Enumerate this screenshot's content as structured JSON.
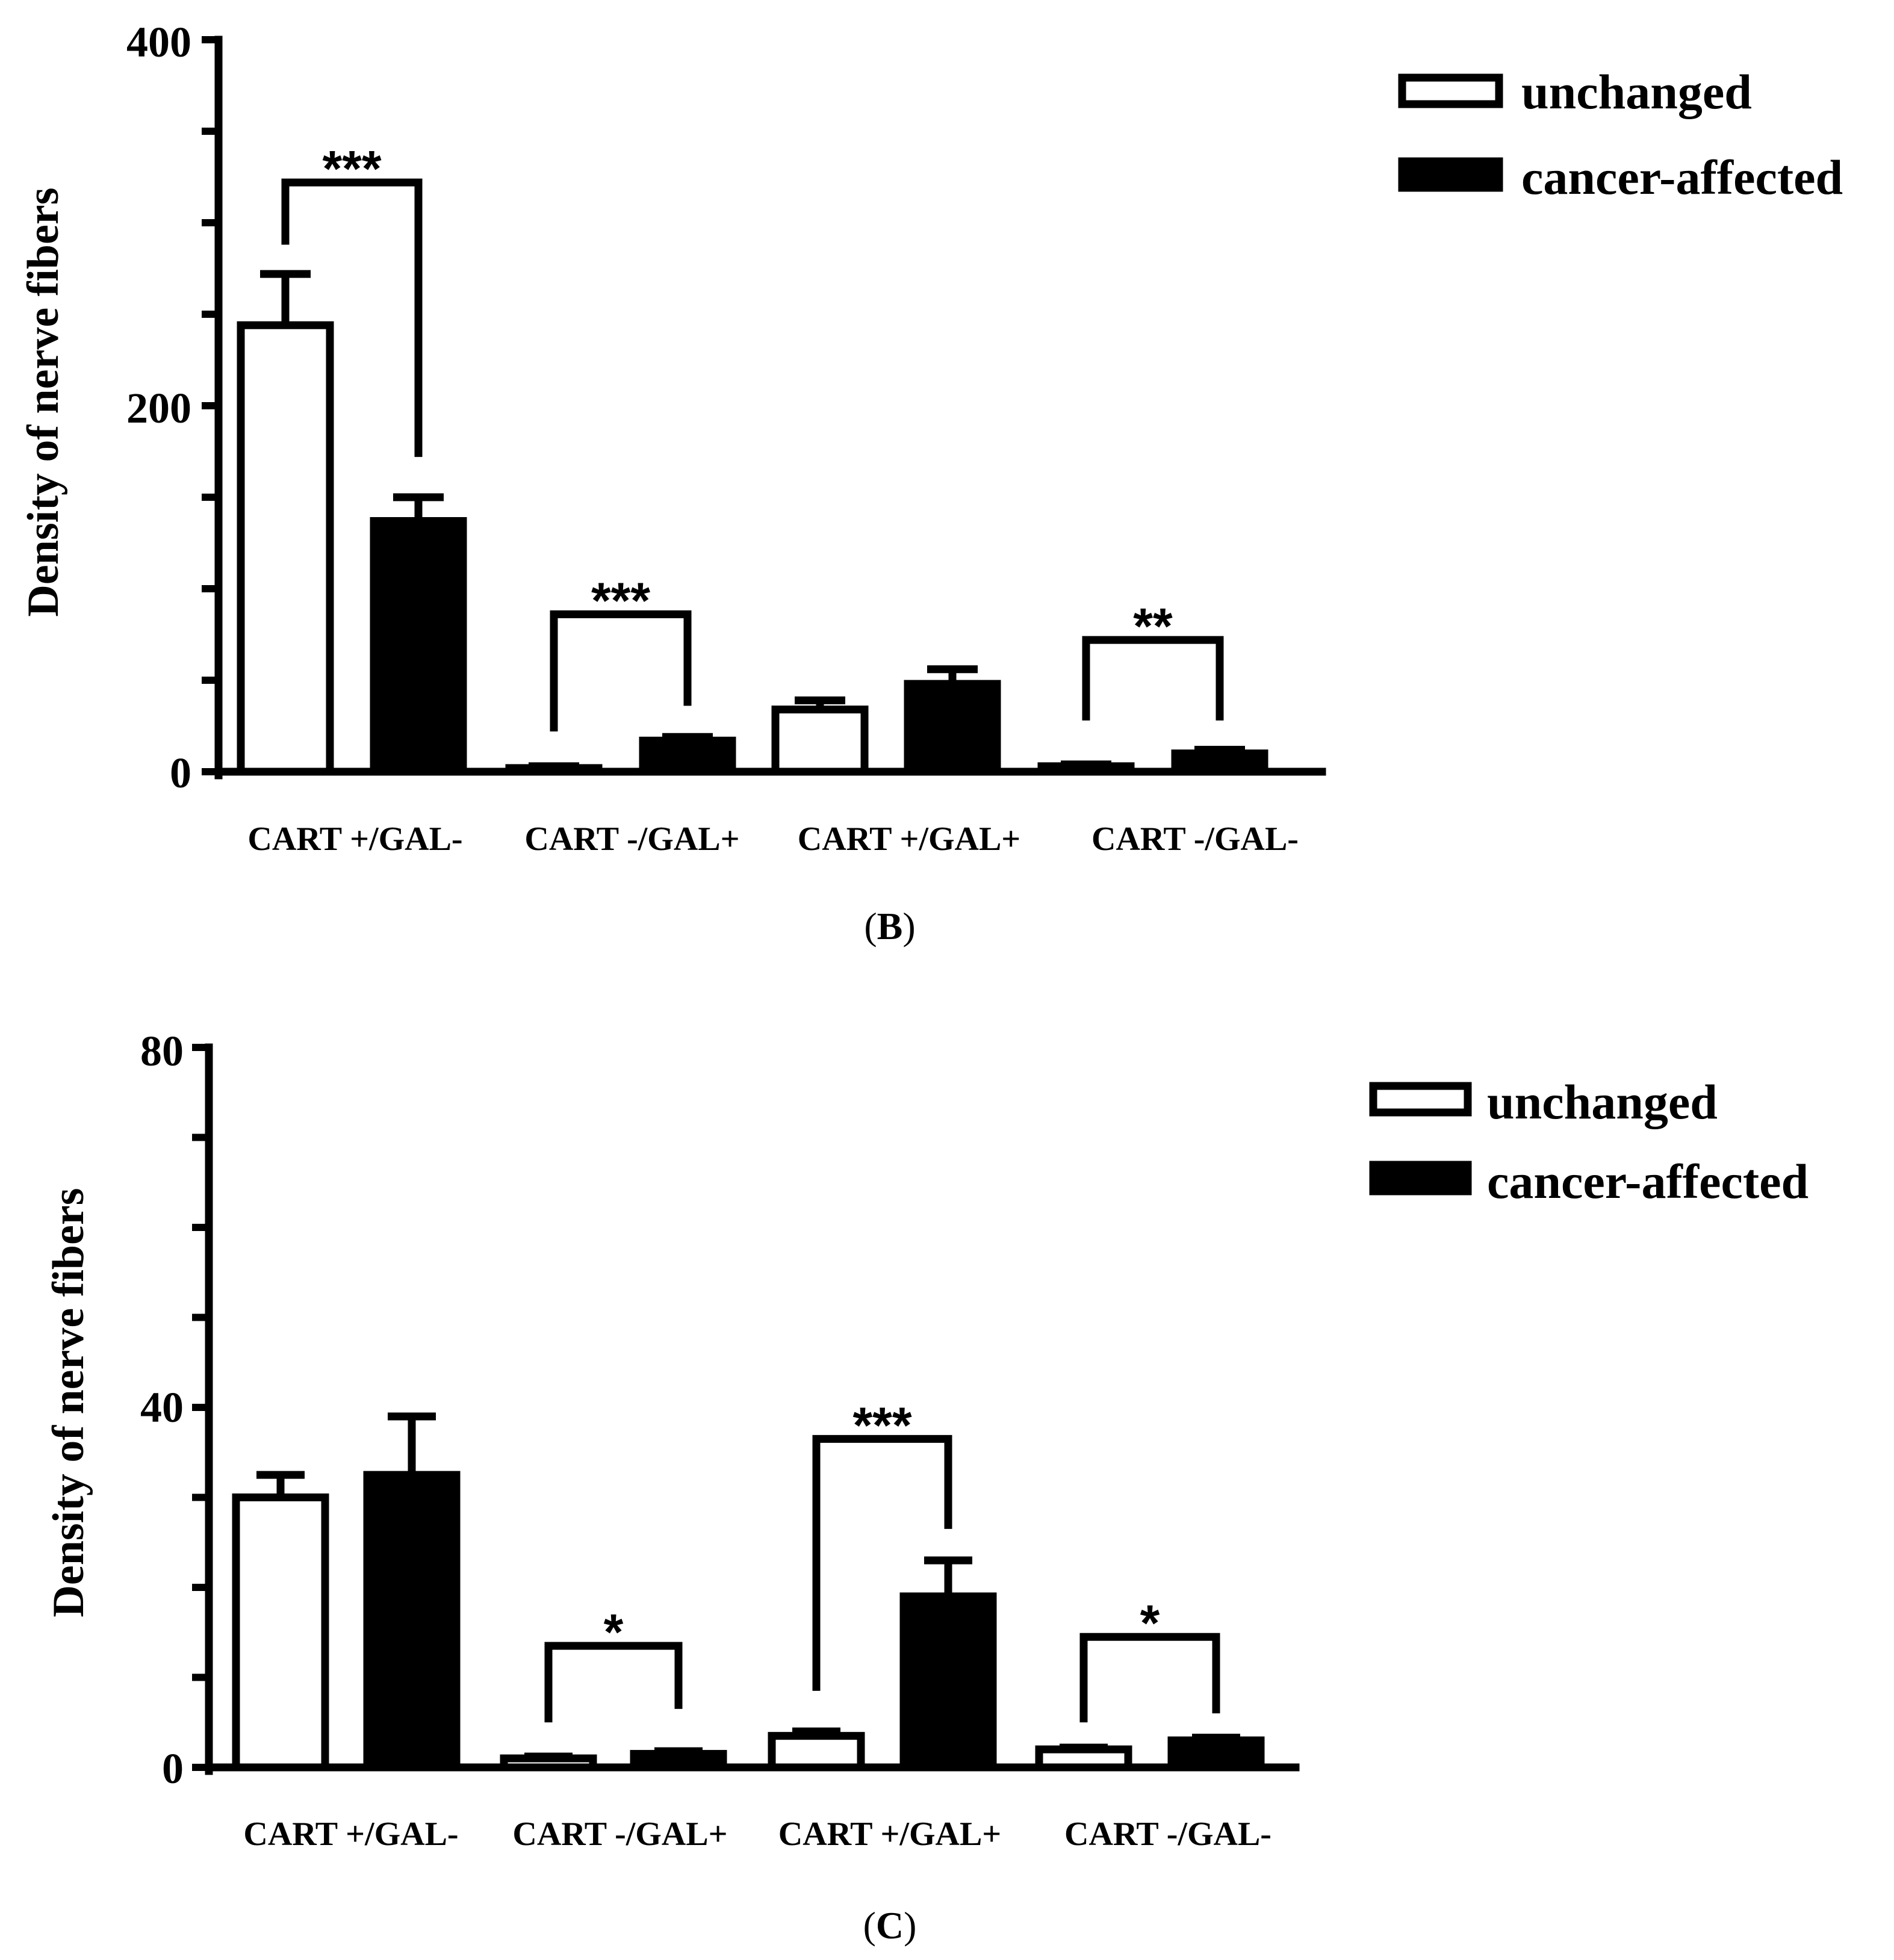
{
  "colors": {
    "unchanged": "#ffffff",
    "cancer_affected": "#000000",
    "stroke": "#000000"
  },
  "chart_data": [
    {
      "type": "bar",
      "panel": "B",
      "panel_caption": {
        "open": "(",
        "letter": "B",
        "close": ")"
      },
      "title": "",
      "xlabel": "",
      "ylabel": "Density of nerve fibers",
      "ylim": [
        0,
        400
      ],
      "yticks": [
        0,
        200,
        400
      ],
      "yticks_minor": [
        50,
        100,
        150,
        250,
        300,
        350
      ],
      "categories": [
        "CART +/GAL-",
        "CART -/GAL+",
        "CART +/GAL+",
        "CART -/GAL-"
      ],
      "series": [
        {
          "name": "unchanged",
          "values": [
            244,
            2,
            34,
            3
          ],
          "errors": [
            28,
            1,
            5,
            1
          ]
        },
        {
          "name": "cancer-affected",
          "values": [
            137,
            17,
            48,
            10
          ],
          "errors": [
            13,
            2,
            8,
            2
          ]
        }
      ],
      "significance": [
        {
          "category": 0,
          "label": "***",
          "level": 322,
          "left_end": 288,
          "right_end": 172
        },
        {
          "category": 1,
          "label": "***",
          "level": 86,
          "left_end": 22,
          "right_end": 36
        },
        {
          "category": 3,
          "label": "**",
          "level": 72,
          "left_end": 28,
          "right_end": 28
        }
      ],
      "legend": [
        "unchanged",
        "cancer-affected"
      ]
    },
    {
      "type": "bar",
      "panel": "C",
      "panel_caption": {
        "open": "(",
        "letter": "C",
        "close": ")"
      },
      "title": "",
      "xlabel": "",
      "ylabel": "Density of nerve fibers",
      "ylim": [
        0,
        80
      ],
      "yticks": [
        0,
        40,
        80
      ],
      "yticks_minor": [
        10,
        20,
        30,
        50,
        60,
        70
      ],
      "categories": [
        "CART +/GAL-",
        "CART -/GAL+",
        "CART +/GAL+",
        "CART -/GAL-"
      ],
      "series": [
        {
          "name": "unchanged",
          "values": [
            30,
            1,
            3.5,
            2
          ],
          "errors": [
            2.5,
            0.2,
            0.5,
            0.2
          ]
        },
        {
          "name": "cancer-affected",
          "values": [
            32.5,
            1.5,
            19,
            3
          ],
          "errors": [
            6.5,
            0.3,
            4,
            0.3
          ]
        }
      ],
      "significance": [
        {
          "category": 1,
          "label": "*",
          "level": 13.5,
          "left_end": 5,
          "right_end": 6.5
        },
        {
          "category": 2,
          "label": "***",
          "level": 36.5,
          "left_end": 8.5,
          "right_end": 26.5
        },
        {
          "category": 3,
          "label": "*",
          "level": 14.5,
          "left_end": 5,
          "right_end": 6
        }
      ],
      "legend": [
        "unchanged",
        "cancer-affected"
      ]
    }
  ]
}
